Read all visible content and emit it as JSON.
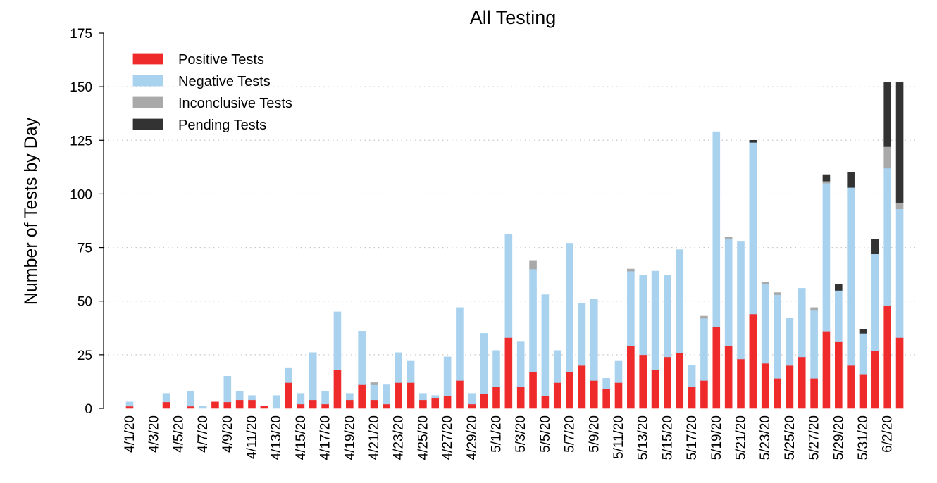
{
  "chart_data": {
    "type": "bar",
    "stacked": true,
    "title": "All Testing",
    "xlabel": "",
    "ylabel": "Number of Tests by Day",
    "ylim": [
      0,
      175
    ],
    "yticks": [
      0,
      25,
      50,
      75,
      100,
      125,
      150,
      175
    ],
    "grid": "horizontal dotted",
    "legend_position": "top-left",
    "categories": [
      "4/1/20",
      "4/2/20",
      "4/3/20",
      "4/4/20",
      "4/5/20",
      "4/6/20",
      "4/7/20",
      "4/8/20",
      "4/9/20",
      "4/10/20",
      "4/11/20",
      "4/12/20",
      "4/13/20",
      "4/14/20",
      "4/15/20",
      "4/16/20",
      "4/17/20",
      "4/18/20",
      "4/19/20",
      "4/20/20",
      "4/21/20",
      "4/22/20",
      "4/23/20",
      "4/24/20",
      "4/25/20",
      "4/26/20",
      "4/27/20",
      "4/28/20",
      "4/29/20",
      "4/30/20",
      "5/1/20",
      "5/2/20",
      "5/3/20",
      "5/4/20",
      "5/5/20",
      "5/6/20",
      "5/7/20",
      "5/8/20",
      "5/9/20",
      "5/10/20",
      "5/11/20",
      "5/12/20",
      "5/13/20",
      "5/14/20",
      "5/15/20",
      "5/16/20",
      "5/17/20",
      "5/18/20",
      "5/19/20",
      "5/20/20",
      "5/21/20",
      "5/22/20",
      "5/23/20",
      "5/24/20",
      "5/25/20",
      "5/26/20",
      "5/27/20",
      "5/28/20",
      "5/29/20",
      "5/30/20",
      "5/31/20",
      "6/1/20",
      "6/2/20",
      "6/3/20"
    ],
    "tick_labels": [
      "4/1/20",
      "4/3/20",
      "4/5/20",
      "4/7/20",
      "4/9/20",
      "4/11/20",
      "4/13/20",
      "4/15/20",
      "4/17/20",
      "4/19/20",
      "4/21/20",
      "4/23/20",
      "4/25/20",
      "4/27/20",
      "4/29/20",
      "5/1/20",
      "5/3/20",
      "5/5/20",
      "5/7/20",
      "5/9/20",
      "5/11/20",
      "5/13/20",
      "5/15/20",
      "5/17/20",
      "5/19/20",
      "5/21/20",
      "5/23/20",
      "5/25/20",
      "5/27/20",
      "5/29/20",
      "5/31/20",
      "6/2/20"
    ],
    "series": [
      {
        "name": "Positive Tests",
        "color": "#ee2a2a",
        "values": [
          1,
          0,
          0,
          3,
          0,
          1,
          0,
          3,
          3,
          4,
          4,
          1,
          0,
          12,
          2,
          4,
          2,
          18,
          4,
          11,
          4,
          2,
          12,
          12,
          4,
          5,
          6,
          13,
          2,
          7,
          10,
          33,
          10,
          17,
          6,
          12,
          17,
          20,
          13,
          9,
          12,
          29,
          25,
          18,
          24,
          26,
          10,
          13,
          38,
          29,
          23,
          44,
          21,
          14,
          20,
          24,
          14,
          36,
          31,
          20,
          16,
          27,
          48,
          33
        ]
      },
      {
        "name": "Negative Tests",
        "color": "#a9d2ef",
        "values": [
          2,
          0,
          0,
          4,
          0,
          7,
          1,
          0,
          12,
          4,
          2,
          0,
          6,
          7,
          5,
          22,
          6,
          27,
          3,
          25,
          7,
          9,
          14,
          10,
          3,
          1,
          18,
          34,
          5,
          28,
          17,
          48,
          21,
          48,
          47,
          15,
          60,
          29,
          38,
          5,
          10,
          35,
          37,
          46,
          38,
          48,
          10,
          29,
          91,
          50,
          55,
          80,
          37,
          39,
          22,
          32,
          32,
          69,
          24,
          83,
          19,
          45,
          64,
          60
        ]
      },
      {
        "name": "Inconclusive Tests",
        "color": "#a9a9a9",
        "values": [
          0,
          0,
          0,
          0,
          0,
          0,
          0,
          0,
          0,
          0,
          0,
          0,
          0,
          0,
          0,
          0,
          0,
          0,
          0,
          0,
          1,
          0,
          0,
          0,
          0,
          0,
          0,
          0,
          0,
          0,
          0,
          0,
          0,
          4,
          0,
          0,
          0,
          0,
          0,
          0,
          0,
          1,
          0,
          0,
          0,
          0,
          0,
          1,
          0,
          1,
          0,
          0,
          1,
          1,
          0,
          0,
          1,
          1,
          0,
          0,
          0,
          0,
          10,
          3
        ]
      },
      {
        "name": "Pending Tests",
        "color": "#333333",
        "values": [
          0,
          0,
          0,
          0,
          0,
          0,
          0,
          0,
          0,
          0,
          0,
          0,
          0,
          0,
          0,
          0,
          0,
          0,
          0,
          0,
          0,
          0,
          0,
          0,
          0,
          0,
          0,
          0,
          0,
          0,
          0,
          0,
          0,
          0,
          0,
          0,
          0,
          0,
          0,
          0,
          0,
          0,
          0,
          0,
          0,
          0,
          0,
          0,
          0,
          0,
          0,
          1,
          0,
          0,
          0,
          0,
          0,
          3,
          3,
          7,
          2,
          7,
          30,
          56
        ]
      }
    ]
  }
}
